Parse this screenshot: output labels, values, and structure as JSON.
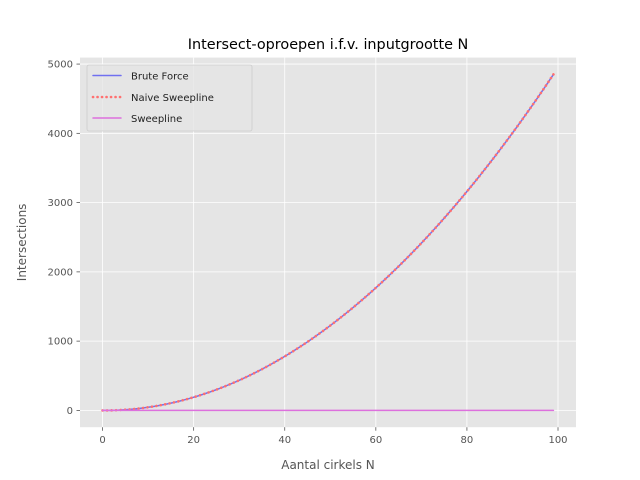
{
  "chart_data": {
    "type": "line",
    "title": "Intersect-oproepen i.f.v. inputgrootte N",
    "xlabel": "Aantal cirkels N",
    "ylabel": "Intersections",
    "xlim": [
      -4.95,
      103.95
    ],
    "ylim": [
      -242.55,
      5093.55
    ],
    "xticks": [
      0,
      20,
      40,
      60,
      80,
      100
    ],
    "yticks": [
      0,
      1000,
      2000,
      3000,
      4000,
      5000
    ],
    "grid": true,
    "legend_position": "top-left",
    "x": {
      "start": 0,
      "end": 99,
      "step": 1
    },
    "series": [
      {
        "name": "Brute Force",
        "formula": "n*(n-1)/2",
        "color": "#7070f0",
        "style": "solid"
      },
      {
        "name": "Naive Sweepline",
        "formula": "n*(n-1)/2",
        "color": "#ff7070",
        "style": "dotted"
      },
      {
        "name": "Sweepline",
        "formula": "0",
        "color": "#dd70dd",
        "style": "solid"
      }
    ]
  }
}
